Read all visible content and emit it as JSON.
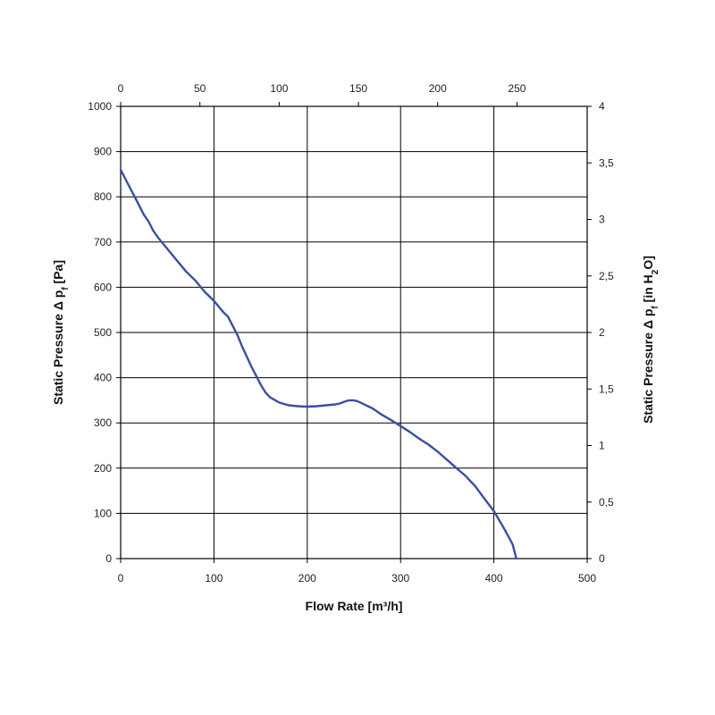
{
  "chart_data": {
    "type": "line",
    "title": "",
    "xlabel": "Flow Rate [m³/h]",
    "ylabel": "Static Pressure Δ pf [Pa]",
    "ylabel_parts": [
      "Static Pressure Δ p",
      "f",
      " [Pa]"
    ],
    "y2label": "Static Pressure Δ pf [in H2O]",
    "y2label_parts": [
      "Static Pressure Δ p",
      "f",
      " [in H",
      "2",
      "O]"
    ],
    "xlim": [
      0,
      500
    ],
    "ylim": [
      0,
      1000
    ],
    "x_ticks": [
      "0",
      "100",
      "200",
      "300",
      "400",
      "500"
    ],
    "y_ticks": [
      "0",
      "100",
      "200",
      "300",
      "400",
      "500",
      "600",
      "700",
      "800",
      "900",
      "1000"
    ],
    "x2_ticks": [
      "0",
      "50",
      "100",
      "150",
      "200",
      "250"
    ],
    "x2_tick_values_m3h": [
      0,
      84.95,
      169.9,
      254.85,
      339.8,
      424.75
    ],
    "y2_ticks": [
      "0",
      "0,5",
      "1",
      "1,5",
      "2",
      "2,5",
      "3",
      "3,5",
      "4"
    ],
    "grid": true,
    "series": [
      {
        "color": "#3b4fa0",
        "x": [
          0,
          5,
          10,
          15,
          20,
          25,
          30,
          35,
          40,
          50,
          60,
          70,
          80,
          90,
          100,
          110,
          115,
          120,
          125,
          130,
          140,
          145,
          150,
          155,
          160,
          170,
          180,
          190,
          200,
          210,
          220,
          230,
          235,
          240,
          245,
          250,
          255,
          260,
          270,
          280,
          290,
          300,
          310,
          320,
          330,
          340,
          350,
          360,
          370,
          380,
          390,
          400,
          410,
          420,
          424
        ],
        "y": [
          860,
          840,
          820,
          800,
          780,
          760,
          745,
          725,
          710,
          685,
          660,
          635,
          615,
          590,
          570,
          545,
          535,
          515,
          495,
          470,
          425,
          405,
          385,
          368,
          357,
          345,
          339,
          337,
          336,
          337,
          339,
          341,
          343,
          347,
          350,
          350,
          347,
          342,
          332,
          318,
          306,
          293,
          280,
          265,
          252,
          236,
          218,
          200,
          182,
          160,
          132,
          105,
          70,
          32,
          0
        ]
      }
    ]
  }
}
